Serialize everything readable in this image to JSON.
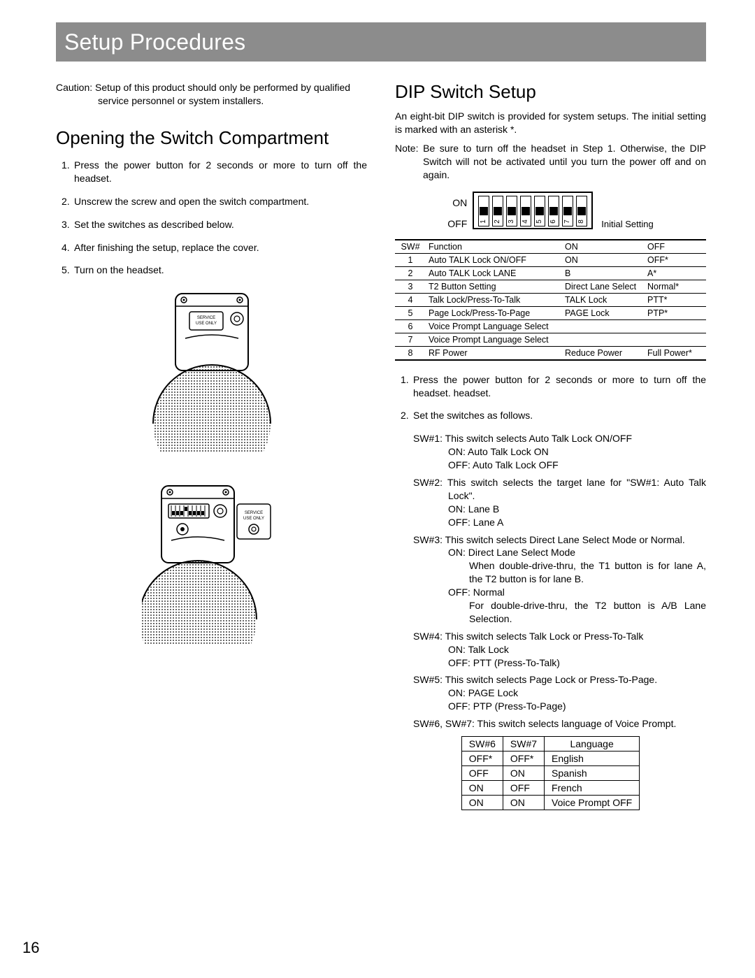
{
  "page_number": "16",
  "title": "Setup Procedures",
  "caution": {
    "label": "Caution:",
    "text": "Setup of this product should only be performed by qualified service personnel or system installers."
  },
  "left": {
    "heading": "Opening the Switch Compartment",
    "steps": [
      "Press the power button for 2 seconds or more to turn off the headset.",
      "Unscrew the screw and open the switch compartment.",
      "Set the switches as described below.",
      "After finishing the setup, replace the cover.",
      "Turn on the headset."
    ],
    "fig1_label": "SERVICE\nUSE ONLY",
    "fig2_label": "SERVICE\nUSE ONLY"
  },
  "right": {
    "heading": "DIP Switch Setup",
    "intro": "An eight-bit DIP switch is provided for system setups. The initial setting is marked with an asterisk *.",
    "note": {
      "label": "Note:",
      "text": "Be sure to turn off the headset in Step 1. Otherwise, the DIP Switch will not be activated until you turn the power off and on again."
    },
    "dip": {
      "on_label": "ON",
      "off_label": "OFF",
      "caption": "Initial Setting",
      "numbers": [
        "1",
        "2",
        "3",
        "4",
        "5",
        "6",
        "7",
        "8"
      ],
      "positions": [
        "off",
        "off",
        "off",
        "off",
        "off",
        "off",
        "off",
        "off"
      ]
    },
    "sw_table": {
      "headers": [
        "SW#",
        "Function",
        "ON",
        "OFF"
      ],
      "rows": [
        [
          "1",
          "Auto TALK Lock ON/OFF",
          "ON",
          "OFF*"
        ],
        [
          "2",
          "Auto TALK Lock LANE",
          "B",
          "A*"
        ],
        [
          "3",
          "T2 Button Setting",
          "Direct Lane Select",
          "Normal*"
        ],
        [
          "4",
          "Talk Lock/Press-To-Talk",
          "TALK Lock",
          "PTT*"
        ],
        [
          "5",
          "Page Lock/Press-To-Page",
          "PAGE Lock",
          "PTP*"
        ],
        [
          "6",
          "Voice Prompt Language Select",
          "",
          ""
        ],
        [
          "7",
          "Voice Prompt Language Select",
          "",
          ""
        ],
        [
          "8",
          "RF Power",
          "Reduce Power",
          "Full Power*"
        ]
      ]
    },
    "steps2": [
      "Press the power button for 2 seconds or more to turn off the headset. headset.",
      "Set the switches as follows."
    ],
    "defs": {
      "sw1": {
        "head": "SW#1: This switch selects Auto Talk Lock ON/OFF",
        "on": "ON: Auto Talk Lock ON",
        "off": "OFF: Auto Talk Lock OFF"
      },
      "sw2": {
        "head": "SW#2: This switch selects the target lane for \"SW#1: Auto Talk Lock\".",
        "on": "ON: Lane B",
        "off": "OFF: Lane A"
      },
      "sw3": {
        "head": "SW#3: This switch selects Direct Lane Select Mode or Normal.",
        "on": "ON: Direct Lane Select Mode",
        "on_desc": "When double-drive-thru, the T1 button is for lane A, the T2 button is for lane B.",
        "off": "OFF: Normal",
        "off_desc": "For double-drive-thru, the T2 button is A/B Lane Selection."
      },
      "sw4": {
        "head": "SW#4: This switch selects Talk Lock or Press-To-Talk",
        "on": "ON: Talk Lock",
        "off": "OFF: PTT (Press-To-Talk)"
      },
      "sw5": {
        "head": "SW#5: This switch selects Page Lock or Press-To-Page.",
        "on": "ON: PAGE Lock",
        "off": "OFF: PTP (Press-To-Page)"
      },
      "sw67": {
        "head": "SW#6, SW#7: This switch selects language of Voice Prompt."
      }
    },
    "lang_table": {
      "headers": [
        "SW#6",
        "SW#7",
        "Language"
      ],
      "rows": [
        [
          "OFF*",
          "OFF*",
          "English"
        ],
        [
          "OFF",
          "ON",
          "Spanish"
        ],
        [
          "ON",
          "OFF",
          "French"
        ],
        [
          "ON",
          "ON",
          "Voice Prompt OFF"
        ]
      ]
    }
  },
  "colors": {
    "title_bg": "#8c8c8c",
    "title_fg": "#ffffff",
    "text": "#000000",
    "page_bg": "#ffffff"
  }
}
